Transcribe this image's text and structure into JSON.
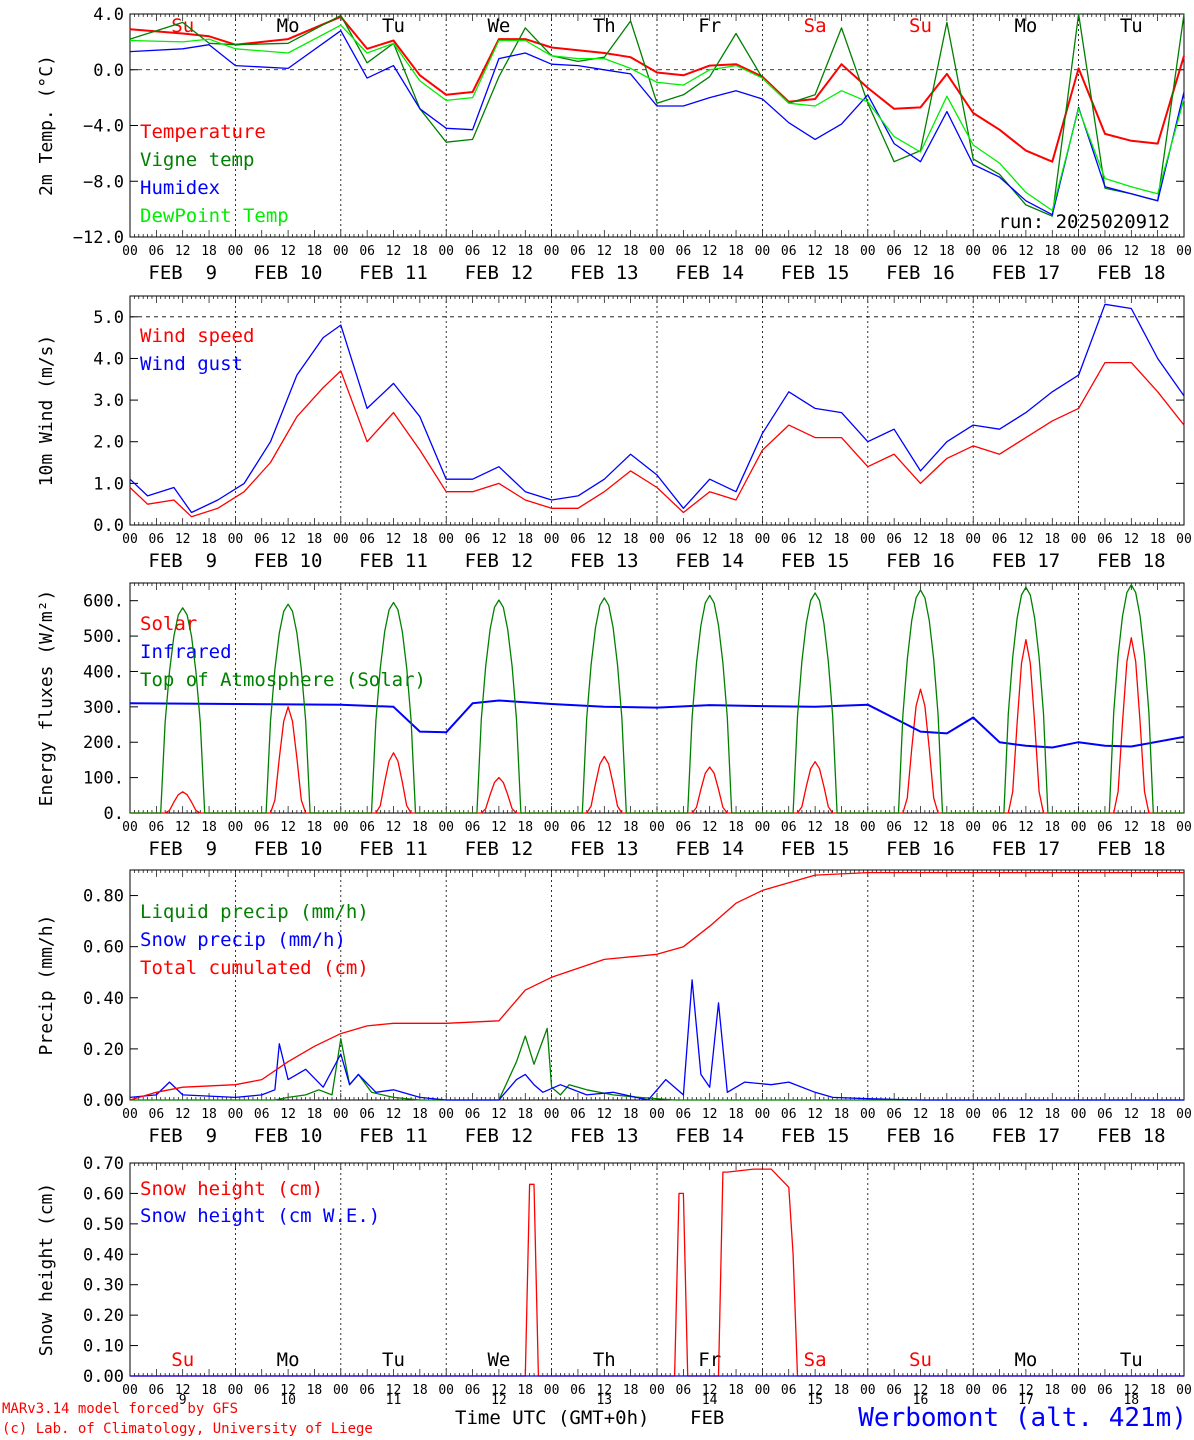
{
  "footer": {
    "credit_line1": "MARv3.14 model forced by GFS",
    "credit_line2": "(c) Lab. of Climatology, University of Liege",
    "xaxis_label": "Time UTC (GMT+0h)",
    "month": "FEB",
    "station": "Werbomont (alt. 421m)"
  },
  "colors": {
    "red": "#ff0000",
    "green": "#008000",
    "blue": "#0000ff",
    "lime": "#00ee00"
  },
  "time_axis": {
    "hour_ticks": [
      "00",
      "06",
      "12",
      "18"
    ],
    "final_tick": "00",
    "day_labels": [
      "FEB  9",
      "FEB 10",
      "FEB 11",
      "FEB 12",
      "FEB 13",
      "FEB 14",
      "FEB 15",
      "FEB 16",
      "FEB 17",
      "FEB 18"
    ],
    "bottom_day_numbers": [
      "9",
      "10",
      "11",
      "12",
      "13",
      "14",
      "15",
      "16",
      "17",
      "18"
    ],
    "weekdays": [
      {
        "label": "Su",
        "weekend": true
      },
      {
        "label": "Mo",
        "weekend": false
      },
      {
        "label": "Tu",
        "weekend": false
      },
      {
        "label": "We",
        "weekend": false
      },
      {
        "label": "Th",
        "weekend": false
      },
      {
        "label": "Fr",
        "weekend": false
      },
      {
        "label": "Sa",
        "weekend": true
      },
      {
        "label": "Su",
        "weekend": true
      },
      {
        "label": "Mo",
        "weekend": false
      },
      {
        "label": "Tu",
        "weekend": false
      }
    ]
  },
  "chart_data": [
    {
      "id": "temperature",
      "type": "line",
      "ylabel": "2m Temp. (°C)",
      "ylim": [
        -12,
        4
      ],
      "yticks": [
        "4.0",
        "0.0",
        "−4.0",
        "−8.0",
        "−12.0"
      ],
      "ytick_values": [
        4,
        0,
        -4,
        -8,
        -12
      ],
      "x_unit": "hours since FEB 9 00 UTC",
      "annotation": "run: 2025020912",
      "series": [
        {
          "name": "Temperature",
          "color": "#ff0000",
          "x": [
            0,
            12,
            18,
            24,
            36,
            48,
            54,
            60,
            66,
            72,
            78,
            84,
            90,
            96,
            102,
            108,
            114,
            120,
            126,
            132,
            138,
            144,
            150,
            156,
            162,
            168,
            174,
            180,
            186,
            192,
            198,
            204,
            210,
            216,
            222,
            228,
            234,
            240
          ],
          "y": [
            2.9,
            2.6,
            2.4,
            1.8,
            2.2,
            3.8,
            1.5,
            2.1,
            -0.4,
            -1.8,
            -1.6,
            2.2,
            2.2,
            1.6,
            1.4,
            1.2,
            0.9,
            -0.2,
            -0.4,
            0.3,
            0.4,
            -0.5,
            -2.3,
            -2.1,
            0.4,
            -1.3,
            -2.8,
            -2.7,
            -0.3,
            -3.1,
            -4.3,
            -5.8,
            -6.6,
            0.1,
            -4.6,
            -5.1,
            -5.3,
            1.0
          ]
        },
        {
          "name": "Vigne temp",
          "color": "#008000",
          "x": [
            0,
            12,
            18,
            24,
            36,
            48,
            54,
            60,
            66,
            72,
            78,
            84,
            90,
            96,
            102,
            108,
            114,
            120,
            126,
            132,
            138,
            144,
            150,
            156,
            162,
            168,
            174,
            180,
            186,
            192,
            198,
            204,
            210,
            216,
            222,
            228,
            234,
            240
          ],
          "y": [
            2.2,
            3.4,
            1.9,
            1.8,
            1.9,
            3.9,
            0.5,
            1.9,
            -2.8,
            -5.2,
            -5.0,
            -0.5,
            3.0,
            1.0,
            0.6,
            0.9,
            3.5,
            -2.4,
            -1.8,
            -0.5,
            2.6,
            -0.6,
            -2.4,
            -1.8,
            3.0,
            -2.4,
            -6.6,
            -5.8,
            3.4,
            -6.4,
            -7.5,
            -9.7,
            -10.5,
            4.0,
            -8.5,
            -8.9,
            -9.4,
            4.0
          ]
        },
        {
          "name": "Humidex",
          "color": "#0000ff",
          "x": [
            0,
            12,
            18,
            24,
            36,
            48,
            54,
            60,
            66,
            72,
            78,
            84,
            90,
            96,
            102,
            108,
            114,
            120,
            126,
            132,
            138,
            144,
            150,
            156,
            162,
            168,
            174,
            180,
            186,
            192,
            198,
            204,
            210,
            216,
            222,
            228,
            234,
            240
          ],
          "y": [
            1.3,
            1.5,
            1.8,
            0.3,
            0.1,
            2.8,
            -0.6,
            0.3,
            -2.8,
            -4.2,
            -4.3,
            0.8,
            1.2,
            0.4,
            0.3,
            0.0,
            -0.3,
            -2.6,
            -2.6,
            -2.0,
            -1.5,
            -2.1,
            -3.8,
            -5.0,
            -3.9,
            -1.8,
            -5.3,
            -6.6,
            -3.0,
            -6.8,
            -7.7,
            -9.4,
            -10.4,
            -2.7,
            -8.4,
            -8.9,
            -9.4,
            -1.6
          ]
        },
        {
          "name": "DewPoint Temp",
          "color": "#00ee00",
          "x": [
            0,
            12,
            18,
            24,
            36,
            48,
            54,
            60,
            66,
            72,
            78,
            84,
            90,
            96,
            102,
            108,
            114,
            120,
            126,
            132,
            138,
            144,
            150,
            156,
            162,
            168,
            174,
            180,
            186,
            192,
            198,
            204,
            210,
            216,
            222,
            228,
            234,
            240
          ],
          "y": [
            2.1,
            2.0,
            2.2,
            1.5,
            1.2,
            3.2,
            1.2,
            1.9,
            -0.8,
            -2.2,
            -2.0,
            2.1,
            2.1,
            1.0,
            0.8,
            0.8,
            0.1,
            -0.9,
            -1.1,
            0.0,
            0.3,
            -0.6,
            -2.4,
            -2.6,
            -1.5,
            -2.3,
            -4.8,
            -5.9,
            -1.9,
            -5.4,
            -6.7,
            -8.8,
            -10.1,
            -2.8,
            -7.8,
            -8.4,
            -8.9,
            -2.1
          ]
        }
      ]
    },
    {
      "id": "wind",
      "type": "line",
      "ylabel": "10m Wind (m/s)",
      "ylim": [
        0,
        5.5
      ],
      "yticks": [
        "5.0",
        "4.0",
        "3.0",
        "2.0",
        "1.0",
        "0.0"
      ],
      "ytick_values": [
        5,
        4,
        3,
        2,
        1,
        0
      ],
      "dashed_reference": 5,
      "x_unit": "hours since FEB 9 00 UTC",
      "series": [
        {
          "name": "Wind speed",
          "color": "#ff0000",
          "x": [
            0,
            4,
            10,
            14,
            20,
            26,
            32,
            38,
            44,
            48,
            54,
            60,
            66,
            72,
            78,
            84,
            90,
            96,
            102,
            108,
            114,
            120,
            126,
            132,
            138,
            144,
            150,
            156,
            162,
            168,
            174,
            180,
            186,
            192,
            198,
            204,
            210,
            216,
            222,
            228,
            234,
            240
          ],
          "y": [
            0.9,
            0.5,
            0.6,
            0.2,
            0.4,
            0.8,
            1.5,
            2.6,
            3.3,
            3.7,
            2.0,
            2.7,
            1.8,
            0.8,
            0.8,
            1.0,
            0.6,
            0.4,
            0.4,
            0.8,
            1.3,
            0.9,
            0.3,
            0.8,
            0.6,
            1.8,
            2.4,
            2.1,
            2.1,
            1.4,
            1.7,
            1.0,
            1.6,
            1.9,
            1.7,
            2.1,
            2.5,
            2.8,
            3.9,
            3.9,
            3.2,
            2.4
          ]
        },
        {
          "name": "Wind gust",
          "color": "#0000ff",
          "x": [
            0,
            4,
            10,
            14,
            20,
            26,
            32,
            38,
            44,
            48,
            54,
            60,
            66,
            72,
            78,
            84,
            90,
            96,
            102,
            108,
            114,
            120,
            126,
            132,
            138,
            144,
            150,
            156,
            162,
            168,
            174,
            180,
            186,
            192,
            198,
            204,
            210,
            216,
            222,
            228,
            234,
            240
          ],
          "y": [
            1.1,
            0.7,
            0.9,
            0.3,
            0.6,
            1.0,
            2.0,
            3.6,
            4.5,
            4.8,
            2.8,
            3.4,
            2.6,
            1.1,
            1.1,
            1.4,
            0.8,
            0.6,
            0.7,
            1.1,
            1.7,
            1.2,
            0.4,
            1.1,
            0.8,
            2.2,
            3.2,
            2.8,
            2.7,
            2.0,
            2.3,
            1.3,
            2.0,
            2.4,
            2.3,
            2.7,
            3.2,
            3.6,
            5.3,
            5.2,
            4.0,
            3.1
          ]
        }
      ]
    },
    {
      "id": "energy",
      "type": "line",
      "ylabel": "Energy fluxes (W/m²)",
      "ylim": [
        0,
        650
      ],
      "yticks": [
        "600.",
        "500.",
        "400.",
        "300.",
        "200.",
        "100.",
        "0."
      ],
      "ytick_values": [
        600,
        500,
        400,
        300,
        200,
        100,
        0
      ],
      "x_unit": "hours since FEB 9 00 UTC",
      "series": [
        {
          "name": "Solar",
          "color": "#ff0000",
          "diurnal_peaks": [
            60,
            300,
            170,
            100,
            160,
            130,
            145,
            350,
            490,
            495
          ]
        },
        {
          "name": "Infrared",
          "color": "#0000ff",
          "x": [
            0,
            24,
            48,
            60,
            66,
            72,
            78,
            84,
            96,
            108,
            120,
            132,
            144,
            156,
            168,
            180,
            186,
            192,
            198,
            204,
            210,
            216,
            222,
            228,
            240
          ],
          "y": [
            310,
            308,
            306,
            300,
            230,
            228,
            310,
            318,
            308,
            300,
            298,
            305,
            302,
            300,
            306,
            230,
            225,
            270,
            200,
            190,
            185,
            200,
            190,
            188,
            215
          ]
        },
        {
          "name": "Top of Atmosphere (Solar)",
          "color": "#008000",
          "diurnal_peaks": [
            580,
            590,
            595,
            602,
            608,
            615,
            622,
            630,
            638,
            645
          ]
        }
      ]
    },
    {
      "id": "precip",
      "type": "line",
      "ylabel": "Precip (mm/h)",
      "ylim": [
        0,
        0.9
      ],
      "yticks": [
        "0.80",
        "0.60",
        "0.40",
        "0.20",
        "0.00"
      ],
      "ytick_values": [
        0.8,
        0.6,
        0.4,
        0.2,
        0
      ],
      "x_unit": "hours since FEB 9 00 UTC",
      "series": [
        {
          "name": "Liquid precip (mm/h)",
          "color": "#008000",
          "x": [
            0,
            24,
            33,
            36,
            40,
            43,
            46,
            48,
            50,
            52,
            55,
            60,
            66,
            72,
            84,
            88,
            90,
            92,
            95,
            96,
            98,
            100,
            104,
            110,
            116,
            124,
            132,
            144,
            156,
            168,
            200,
            240
          ],
          "y": [
            0,
            0,
            0,
            0.01,
            0.02,
            0.04,
            0.02,
            0.24,
            0.06,
            0.1,
            0.03,
            0.01,
            0,
            0,
            0,
            0.15,
            0.25,
            0.14,
            0.28,
            0.05,
            0.02,
            0.06,
            0.04,
            0.02,
            0.01,
            0,
            0,
            0,
            0,
            0,
            0,
            0
          ]
        },
        {
          "name": "Snow precip (mm/h)",
          "color": "#0000ff",
          "x": [
            0,
            6,
            9,
            12,
            24,
            30,
            33,
            34,
            36,
            40,
            44,
            48,
            50,
            52,
            56,
            60,
            66,
            72,
            84,
            88,
            90,
            92,
            94,
            98,
            104,
            110,
            118,
            120,
            122,
            124,
            126,
            128,
            130,
            132,
            134,
            136,
            138,
            140,
            146,
            150,
            156,
            160,
            168,
            180,
            240
          ],
          "y": [
            0.01,
            0.02,
            0.07,
            0.02,
            0.01,
            0.02,
            0.04,
            0.22,
            0.08,
            0.12,
            0.05,
            0.18,
            0.06,
            0.1,
            0.03,
            0.04,
            0.01,
            0,
            0,
            0.08,
            0.1,
            0.06,
            0.03,
            0.06,
            0.02,
            0.03,
            0,
            0.04,
            0.08,
            0.05,
            0.02,
            0.47,
            0.1,
            0.05,
            0.38,
            0.03,
            0.05,
            0.07,
            0.06,
            0.07,
            0.03,
            0.01,
            0.005,
            0,
            0
          ]
        },
        {
          "name": "Total cumulated (cm)",
          "color": "#ff0000",
          "x": [
            0,
            6,
            12,
            24,
            30,
            36,
            42,
            48,
            54,
            60,
            72,
            84,
            90,
            96,
            108,
            120,
            126,
            132,
            138,
            144,
            156,
            168,
            240
          ],
          "y": [
            0,
            0.03,
            0.05,
            0.06,
            0.08,
            0.15,
            0.21,
            0.26,
            0.29,
            0.3,
            0.3,
            0.31,
            0.43,
            0.48,
            0.55,
            0.57,
            0.6,
            0.68,
            0.77,
            0.82,
            0.88,
            0.89,
            0.89
          ]
        }
      ]
    },
    {
      "id": "snow",
      "type": "line",
      "ylabel": "Snow height (cm)",
      "ylim": [
        0,
        0.7
      ],
      "yticks": [
        "0.70",
        "0.60",
        "0.50",
        "0.40",
        "0.30",
        "0.20",
        "0.10",
        "0.00"
      ],
      "ytick_values": [
        0.7,
        0.6,
        0.5,
        0.4,
        0.3,
        0.2,
        0.1,
        0
      ],
      "x_unit": "hours since FEB 9 00 UTC",
      "series": [
        {
          "name": "Snow height (cm)",
          "color": "#ff0000",
          "x": [
            0,
            90,
            91,
            92,
            93,
            124,
            125,
            126,
            127,
            134,
            135,
            136,
            142,
            146,
            150,
            151,
            152,
            153,
            240
          ],
          "y": [
            0,
            0,
            0.63,
            0.63,
            0,
            0,
            0.6,
            0.6,
            0,
            0,
            0.67,
            0.67,
            0.68,
            0.68,
            0.62,
            0.4,
            0,
            0,
            0
          ]
        },
        {
          "name": "Snow height (cm W.E.)",
          "color": "#0000ff",
          "x": [
            0,
            240
          ],
          "y": [
            0,
            0
          ]
        }
      ]
    }
  ]
}
